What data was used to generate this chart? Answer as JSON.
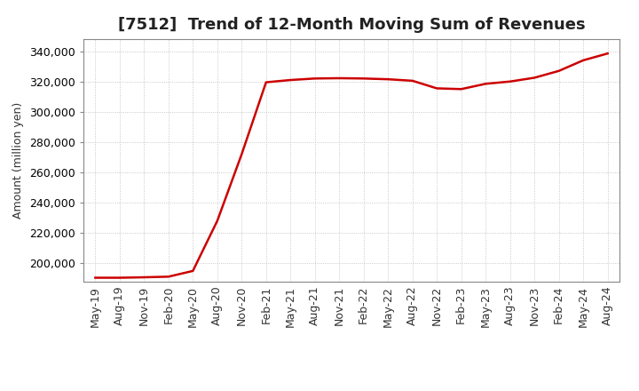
{
  "title": "[7512]  Trend of 12-Month Moving Sum of Revenues",
  "ylabel": "Amount (million yen)",
  "line_color": "#cc0000",
  "line_width": 1.8,
  "background_color": "#ffffff",
  "plot_bg_color": "#ffffff",
  "grid_color": "#bbbbbb",
  "ylim": [
    188000,
    348000
  ],
  "yticks": [
    200000,
    220000,
    240000,
    260000,
    280000,
    300000,
    320000,
    340000
  ],
  "values": [
    190500,
    190500,
    190800,
    191200,
    195000,
    228000,
    272000,
    319500,
    321000,
    322000,
    322200,
    322000,
    321500,
    320500,
    315500,
    315000,
    318500,
    320000,
    322500,
    327000,
    334000,
    338500
  ],
  "xtick_labels": [
    "May-19",
    "Aug-19",
    "Nov-19",
    "Feb-20",
    "May-20",
    "Aug-20",
    "Nov-20",
    "Feb-21",
    "May-21",
    "Aug-21",
    "Nov-21",
    "Feb-22",
    "May-22",
    "Aug-22",
    "Nov-22",
    "Feb-23",
    "May-23",
    "Aug-23",
    "Nov-23",
    "Feb-24",
    "May-24",
    "Aug-24"
  ],
  "title_fontsize": 13,
  "axis_fontsize": 9,
  "tick_fontsize": 9
}
